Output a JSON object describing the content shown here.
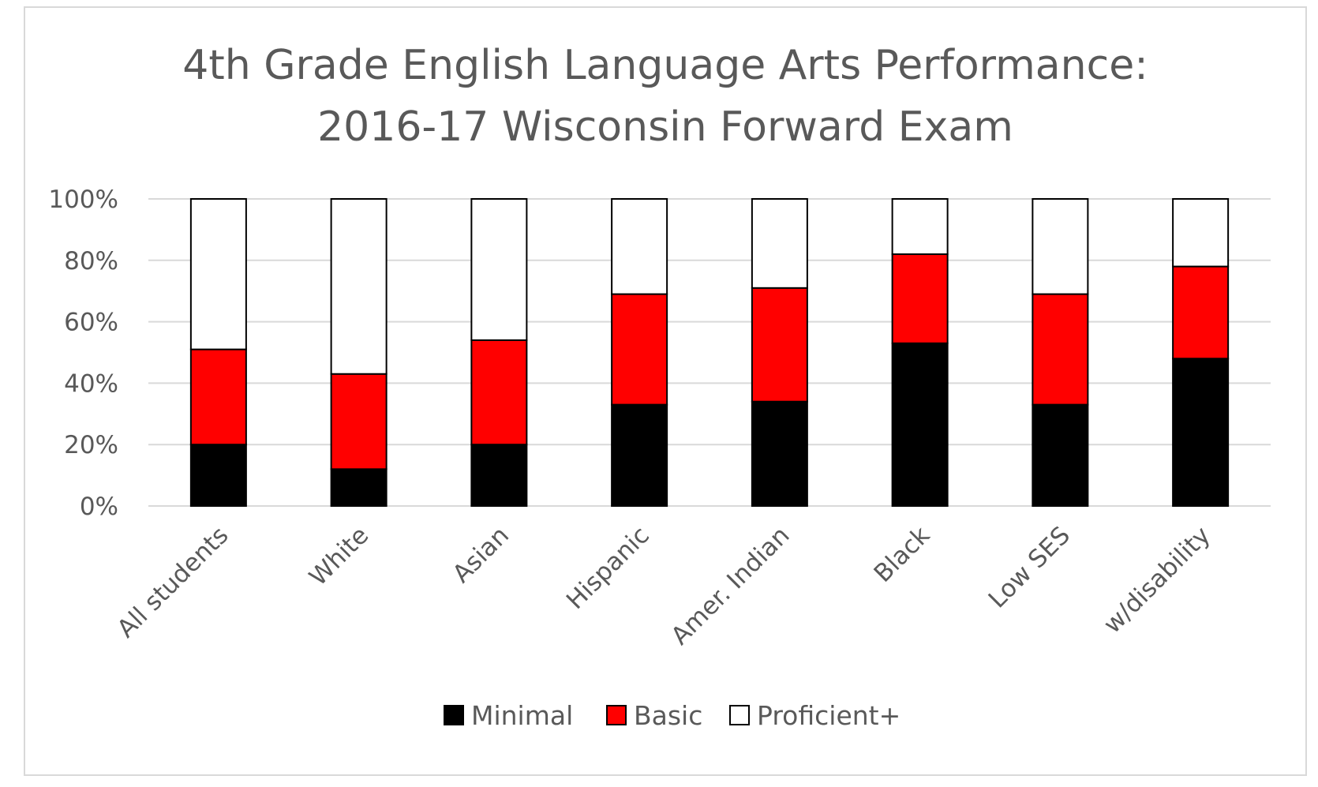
{
  "chart_data": {
    "type": "bar",
    "stacked": true,
    "title_lines": [
      "4th Grade English Language Arts Performance:",
      "2016-17 Wisconsin Forward Exam"
    ],
    "categories": [
      "All students",
      "White",
      "Asian",
      "Hispanic",
      "Amer. Indian",
      "Black",
      "Low SES",
      "w/disability"
    ],
    "series": [
      {
        "name": "Minimal",
        "color": "#000000",
        "values": [
          20,
          12,
          20,
          33,
          34,
          53,
          33,
          48
        ]
      },
      {
        "name": "Basic",
        "color": "#ff0000",
        "values": [
          31,
          31,
          34,
          36,
          37,
          29,
          36,
          30
        ]
      },
      {
        "name": "Proficient+",
        "color": "#ffffff",
        "values": [
          49,
          57,
          46,
          31,
          29,
          18,
          31,
          22
        ]
      }
    ],
    "y_ticks": [
      "0%",
      "20%",
      "40%",
      "60%",
      "80%",
      "100%"
    ],
    "ylim": [
      0,
      100
    ],
    "grid": true,
    "legend_position": "bottom"
  }
}
